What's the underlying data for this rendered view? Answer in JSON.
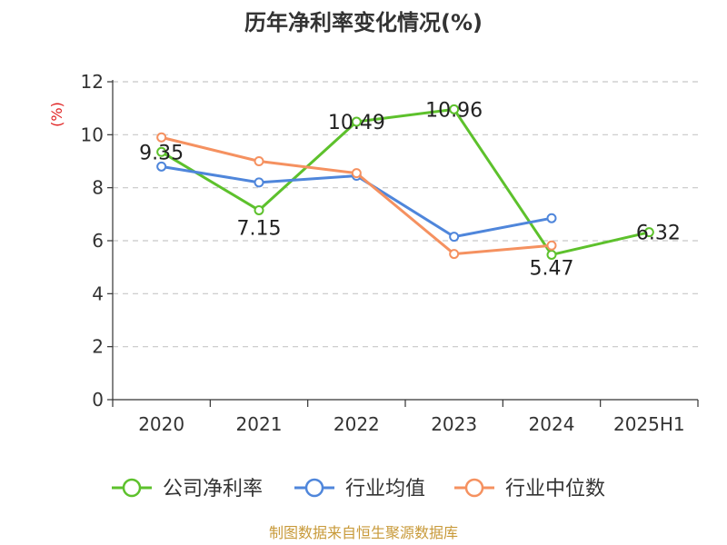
{
  "chart_data": {
    "type": "line",
    "title": "历年净利率变化情况(%)",
    "ylabel": "(%)",
    "xlabel": "",
    "categories": [
      "2020",
      "2021",
      "2022",
      "2023",
      "2024",
      "2025H1"
    ],
    "ylim": [
      0,
      12
    ],
    "yticks": [
      0,
      2,
      4,
      6,
      8,
      10,
      12
    ],
    "grid": true,
    "legend_position": "bottom",
    "series": [
      {
        "name": "公司净利率",
        "color": "#5dc12c",
        "values": [
          9.35,
          7.15,
          10.49,
          10.96,
          5.47,
          6.32
        ],
        "labels": [
          "9.35",
          "7.15",
          "10.49",
          "10.96",
          "5.47",
          "6.32"
        ]
      },
      {
        "name": "行业均值",
        "color": "#4f86db",
        "values": [
          8.8,
          8.2,
          8.45,
          6.15,
          6.85,
          null
        ]
      },
      {
        "name": "行业中位数",
        "color": "#f59160",
        "values": [
          9.9,
          9.0,
          8.55,
          5.5,
          5.82,
          null
        ]
      }
    ]
  },
  "source": "制图数据来自恒生聚源数据库"
}
